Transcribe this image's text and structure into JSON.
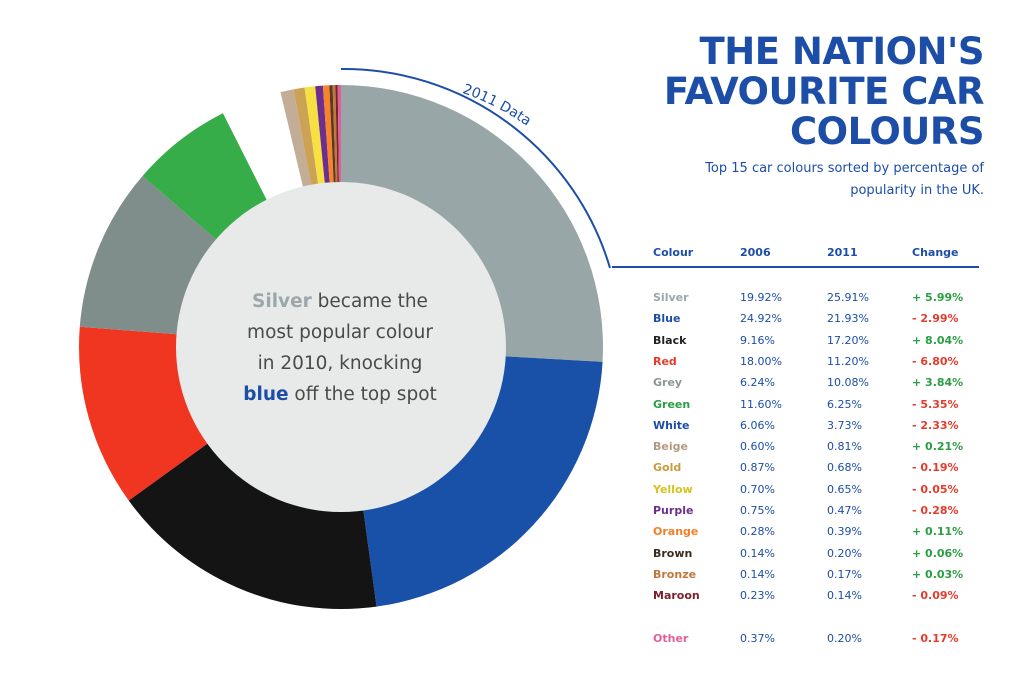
{
  "title": {
    "line1": "THE NATION'S",
    "line2": "FAVOURITE CAR",
    "line3": "COLOURS"
  },
  "subtitle": {
    "line1": "Top 15 car colours sorted by percentage of",
    "line2": "popularity in the UK."
  },
  "donut_label": "2011 Data",
  "center_text": {
    "part1": "Silver",
    "part2": " became the",
    "line2": "most popular colour",
    "line3": "in 2010, knocking",
    "part4": "blue",
    "part5": " off the top spot"
  },
  "table": {
    "headers": [
      "Colour",
      "2006",
      "2011",
      "Change"
    ]
  },
  "chart_data": {
    "type": "pie",
    "donut": true,
    "label": "2011 Data",
    "categories": [
      "Silver",
      "Blue",
      "Black",
      "Red",
      "Grey",
      "Green",
      "White",
      "Beige",
      "Gold",
      "Yellow",
      "Purple",
      "Orange",
      "Brown",
      "Bronze",
      "Maroon",
      "Other"
    ],
    "series": [
      {
        "name": "2006",
        "values": [
          19.92,
          24.92,
          9.16,
          18.0,
          6.24,
          11.6,
          6.06,
          0.6,
          0.87,
          0.7,
          0.75,
          0.28,
          0.14,
          0.14,
          0.23,
          0.37
        ]
      },
      {
        "name": "2011",
        "values": [
          25.91,
          21.93,
          17.2,
          11.2,
          10.08,
          6.25,
          3.73,
          0.81,
          0.68,
          0.65,
          0.47,
          0.39,
          0.2,
          0.17,
          0.14,
          0.2
        ]
      }
    ],
    "rows": [
      {
        "colour": "Silver",
        "y2006": "19.92%",
        "y2011": "25.91%",
        "change": "+ 5.99%"
      },
      {
        "colour": "Blue",
        "y2006": "24.92%",
        "y2011": "21.93%",
        "change": "- 2.99%"
      },
      {
        "colour": "Black",
        "y2006": "9.16%",
        "y2011": "17.20%",
        "change": "+ 8.04%"
      },
      {
        "colour": "Red",
        "y2006": "18.00%",
        "y2011": "11.20%",
        "change": "- 6.80%"
      },
      {
        "colour": "Grey",
        "y2006": "6.24%",
        "y2011": "10.08%",
        "change": "+ 3.84%"
      },
      {
        "colour": "Green",
        "y2006": "11.60%",
        "y2011": "6.25%",
        "change": "- 5.35%"
      },
      {
        "colour": "White",
        "y2006": "6.06%",
        "y2011": "3.73%",
        "change": "- 2.33%"
      },
      {
        "colour": "Beige",
        "y2006": "0.60%",
        "y2011": "0.81%",
        "change": "+ 0.21%"
      },
      {
        "colour": "Gold",
        "y2006": "0.87%",
        "y2011": "0.68%",
        "change": "- 0.19%"
      },
      {
        "colour": "Yellow",
        "y2006": "0.70%",
        "y2011": "0.65%",
        "change": "- 0.05%"
      },
      {
        "colour": "Purple",
        "y2006": "0.75%",
        "y2011": "0.47%",
        "change": "- 0.28%"
      },
      {
        "colour": "Orange",
        "y2006": "0.28%",
        "y2011": "0.39%",
        "change": "+ 0.11%"
      },
      {
        "colour": "Brown",
        "y2006": "0.14%",
        "y2011": "0.20%",
        "change": "+ 0.06%"
      },
      {
        "colour": "Bronze",
        "y2006": "0.14%",
        "y2011": "0.17%",
        "change": "+ 0.03%"
      },
      {
        "colour": "Maroon",
        "y2006": "0.23%",
        "y2011": "0.14%",
        "change": "- 0.09%"
      },
      {
        "colour": "Other",
        "y2006": "0.37%",
        "y2011": "0.20%",
        "change": "- 0.17%"
      }
    ],
    "slice_colors": [
      "#98a6a8",
      "#1a51a8",
      "#141414",
      "#f03521",
      "#7f8e8b",
      "#37ad4a",
      "#ffffff",
      "#c4ad96",
      "#cca354",
      "#f6e042",
      "#6d2f8d",
      "#f7842b",
      "#5a3a25",
      "#c0773c",
      "#7b1f2a",
      "#e0609a"
    ],
    "label_colors": [
      "#9aa7ab",
      "#1c4ea8",
      "#222222",
      "#e53b2c",
      "#8a9895",
      "#2a9e42",
      "#1c4ea8",
      "#b59a80",
      "#c99b3c",
      "#d8c21e",
      "#6d2f8d",
      "#f08028",
      "#3a2a20",
      "#c0773c",
      "#7b1f2a",
      "#e0609a"
    ],
    "positive_color": "#2a9e42",
    "negative_color": "#e53b2c"
  }
}
